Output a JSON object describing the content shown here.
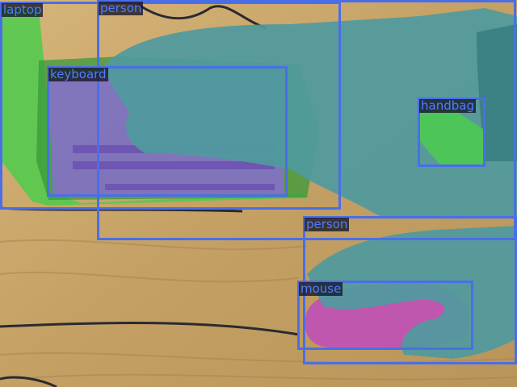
{
  "detections": [
    {
      "label": "laptop"
    },
    {
      "label": "person"
    },
    {
      "label": "keyboard"
    },
    {
      "label": "handbag"
    },
    {
      "label": "person"
    },
    {
      "label": "mouse"
    }
  ],
  "colors": {
    "box": "#4a6ee8",
    "label_text": "#4f7cff",
    "laptop_mask": "#4ccc4c",
    "keyboard_mask": "#8a6ad8",
    "person_mask": "#4f9a9e",
    "mouse_mask": "#c050b8",
    "table": "#c9a86a"
  }
}
